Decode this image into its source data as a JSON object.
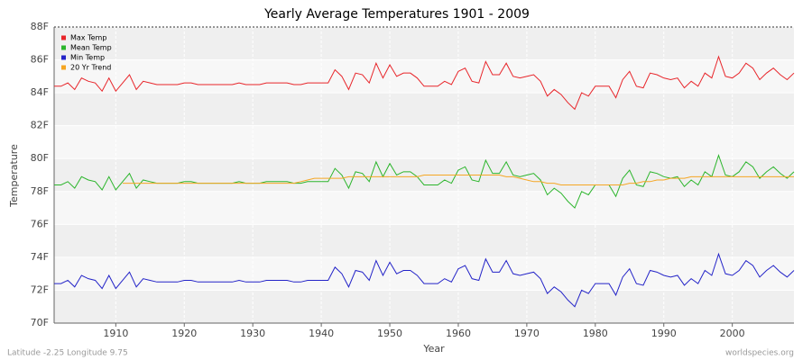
{
  "chart_data": {
    "type": "line",
    "title": "Yearly Average Temperatures 1901 - 2009",
    "x_label": "Year",
    "y_label": "Temperature",
    "footer_left": "Latitude -2.25 Longitude 9.75",
    "footer_right": "worldspecies.org",
    "legend": "top-left",
    "grid": true,
    "xlim": [
      1901,
      2009
    ],
    "xticks": [
      1910,
      1920,
      1930,
      1940,
      1950,
      1960,
      1970,
      1980,
      1990,
      2000
    ],
    "ylim": [
      70,
      88
    ],
    "yticks": [
      {
        "value": 70,
        "label": "70F"
      },
      {
        "value": 72,
        "label": "72F"
      },
      {
        "value": 74,
        "label": "74F"
      },
      {
        "value": 76,
        "label": "76F"
      },
      {
        "value": 78,
        "label": "78F"
      },
      {
        "value": 80,
        "label": "80F"
      },
      {
        "value": 82,
        "label": "82F"
      },
      {
        "value": 84,
        "label": "84F"
      },
      {
        "value": 86,
        "label": "86F"
      },
      {
        "value": 88,
        "label": "88F"
      }
    ],
    "x": [
      1901,
      1902,
      1903,
      1904,
      1905,
      1906,
      1907,
      1908,
      1909,
      1910,
      1911,
      1912,
      1913,
      1914,
      1915,
      1916,
      1917,
      1918,
      1919,
      1920,
      1921,
      1922,
      1923,
      1924,
      1925,
      1926,
      1927,
      1928,
      1929,
      1930,
      1931,
      1932,
      1933,
      1934,
      1935,
      1936,
      1937,
      1938,
      1939,
      1940,
      1941,
      1942,
      1943,
      1944,
      1945,
      1946,
      1947,
      1948,
      1949,
      1950,
      1951,
      1952,
      1953,
      1954,
      1955,
      1956,
      1957,
      1958,
      1959,
      1960,
      1961,
      1962,
      1963,
      1964,
      1965,
      1966,
      1967,
      1968,
      1969,
      1970,
      1971,
      1972,
      1973,
      1974,
      1975,
      1976,
      1977,
      1978,
      1979,
      1980,
      1981,
      1982,
      1983,
      1984,
      1985,
      1986,
      1987,
      1988,
      1989,
      1990,
      1991,
      1992,
      1993,
      1994,
      1995,
      1996,
      1997,
      1998,
      1999,
      2000,
      2001,
      2002,
      2003,
      2004,
      2005,
      2006,
      2007,
      2008,
      2009
    ],
    "series": [
      {
        "name": "Max Temp",
        "color": "#e8252a",
        "values": [
          84.4,
          84.4,
          84.6,
          84.2,
          84.9,
          84.7,
          84.6,
          84.1,
          84.9,
          84.1,
          84.6,
          85.1,
          84.2,
          84.7,
          84.6,
          84.5,
          84.5,
          84.5,
          84.5,
          84.6,
          84.6,
          84.5,
          84.5,
          84.5,
          84.5,
          84.5,
          84.5,
          84.6,
          84.5,
          84.5,
          84.5,
          84.6,
          84.6,
          84.6,
          84.6,
          84.5,
          84.5,
          84.6,
          84.6,
          84.6,
          84.6,
          85.4,
          85.0,
          84.2,
          85.2,
          85.1,
          84.6,
          85.8,
          84.9,
          85.7,
          85.0,
          85.2,
          85.2,
          84.9,
          84.4,
          84.4,
          84.4,
          84.7,
          84.5,
          85.3,
          85.5,
          84.7,
          84.6,
          85.9,
          85.1,
          85.1,
          85.8,
          85.0,
          84.9,
          85.0,
          85.1,
          84.7,
          83.8,
          84.2,
          83.9,
          83.4,
          83.0,
          84.0,
          83.8,
          84.4,
          84.4,
          84.4,
          83.7,
          84.8,
          85.3,
          84.4,
          84.3,
          85.2,
          85.1,
          84.9,
          84.8,
          84.9,
          84.3,
          84.7,
          84.4,
          85.2,
          84.9,
          86.2,
          85.0,
          84.9,
          85.2,
          85.8,
          85.5,
          84.8,
          85.2,
          85.5,
          85.1,
          84.8,
          85.2
        ]
      },
      {
        "name": "Mean Temp",
        "color": "#2bb52b",
        "values": [
          78.4,
          78.4,
          78.6,
          78.2,
          78.9,
          78.7,
          78.6,
          78.1,
          78.9,
          78.1,
          78.6,
          79.1,
          78.2,
          78.7,
          78.6,
          78.5,
          78.5,
          78.5,
          78.5,
          78.6,
          78.6,
          78.5,
          78.5,
          78.5,
          78.5,
          78.5,
          78.5,
          78.6,
          78.5,
          78.5,
          78.5,
          78.6,
          78.6,
          78.6,
          78.6,
          78.5,
          78.5,
          78.6,
          78.6,
          78.6,
          78.6,
          79.4,
          79.0,
          78.2,
          79.2,
          79.1,
          78.6,
          79.8,
          78.9,
          79.7,
          79.0,
          79.2,
          79.2,
          78.9,
          78.4,
          78.4,
          78.4,
          78.7,
          78.5,
          79.3,
          79.5,
          78.7,
          78.6,
          79.9,
          79.1,
          79.1,
          79.8,
          79.0,
          78.9,
          79.0,
          79.1,
          78.7,
          77.8,
          78.2,
          77.9,
          77.4,
          77.0,
          78.0,
          77.8,
          78.4,
          78.4,
          78.4,
          77.7,
          78.8,
          79.3,
          78.4,
          78.3,
          79.2,
          79.1,
          78.9,
          78.8,
          78.9,
          78.3,
          78.7,
          78.4,
          79.2,
          78.9,
          80.2,
          79.0,
          78.9,
          79.2,
          79.8,
          79.5,
          78.8,
          79.2,
          79.5,
          79.1,
          78.8,
          79.2
        ]
      },
      {
        "name": "Min Temp",
        "color": "#2424c8",
        "values": [
          72.4,
          72.4,
          72.6,
          72.2,
          72.9,
          72.7,
          72.6,
          72.1,
          72.9,
          72.1,
          72.6,
          73.1,
          72.2,
          72.7,
          72.6,
          72.5,
          72.5,
          72.5,
          72.5,
          72.6,
          72.6,
          72.5,
          72.5,
          72.5,
          72.5,
          72.5,
          72.5,
          72.6,
          72.5,
          72.5,
          72.5,
          72.6,
          72.6,
          72.6,
          72.6,
          72.5,
          72.5,
          72.6,
          72.6,
          72.6,
          72.6,
          73.4,
          73.0,
          72.2,
          73.2,
          73.1,
          72.6,
          73.8,
          72.9,
          73.7,
          73.0,
          73.2,
          73.2,
          72.9,
          72.4,
          72.4,
          72.4,
          72.7,
          72.5,
          73.3,
          73.5,
          72.7,
          72.6,
          73.9,
          73.1,
          73.1,
          73.8,
          73.0,
          72.9,
          73.0,
          73.1,
          72.7,
          71.8,
          72.2,
          71.9,
          71.4,
          71.0,
          72.0,
          71.8,
          72.4,
          72.4,
          72.4,
          71.7,
          72.8,
          73.3,
          72.4,
          72.3,
          73.2,
          73.1,
          72.9,
          72.8,
          72.9,
          72.3,
          72.7,
          72.4,
          73.2,
          72.9,
          74.2,
          73.0,
          72.9,
          73.2,
          73.8,
          73.5,
          72.8,
          73.2,
          73.5,
          73.1,
          72.8,
          73.2
        ]
      },
      {
        "name": "20 Yr Trend",
        "color": "#f5a623",
        "values": [
          null,
          null,
          null,
          null,
          null,
          null,
          null,
          null,
          null,
          null,
          78.5,
          78.5,
          78.5,
          78.5,
          78.5,
          78.5,
          78.5,
          78.5,
          78.5,
          78.5,
          78.5,
          78.5,
          78.5,
          78.5,
          78.5,
          78.5,
          78.5,
          78.5,
          78.5,
          78.5,
          78.5,
          78.5,
          78.5,
          78.5,
          78.5,
          78.5,
          78.6,
          78.7,
          78.8,
          78.8,
          78.8,
          78.8,
          78.8,
          78.9,
          78.9,
          78.9,
          78.9,
          78.9,
          78.9,
          78.9,
          78.9,
          78.9,
          78.9,
          78.9,
          79.0,
          79.0,
          79.0,
          79.0,
          79.0,
          79.0,
          79.0,
          79.0,
          79.0,
          79.0,
          79.0,
          79.0,
          78.9,
          78.9,
          78.8,
          78.7,
          78.6,
          78.6,
          78.5,
          78.5,
          78.4,
          78.4,
          78.4,
          78.4,
          78.4,
          78.4,
          78.4,
          78.4,
          78.4,
          78.4,
          78.5,
          78.5,
          78.6,
          78.6,
          78.7,
          78.7,
          78.8,
          78.8,
          78.8,
          78.9,
          78.9,
          78.9,
          78.9,
          78.9,
          78.9,
          78.9,
          78.9,
          78.9,
          78.9,
          78.9,
          78.9,
          78.9,
          78.9,
          78.9,
          78.9
        ]
      }
    ]
  }
}
